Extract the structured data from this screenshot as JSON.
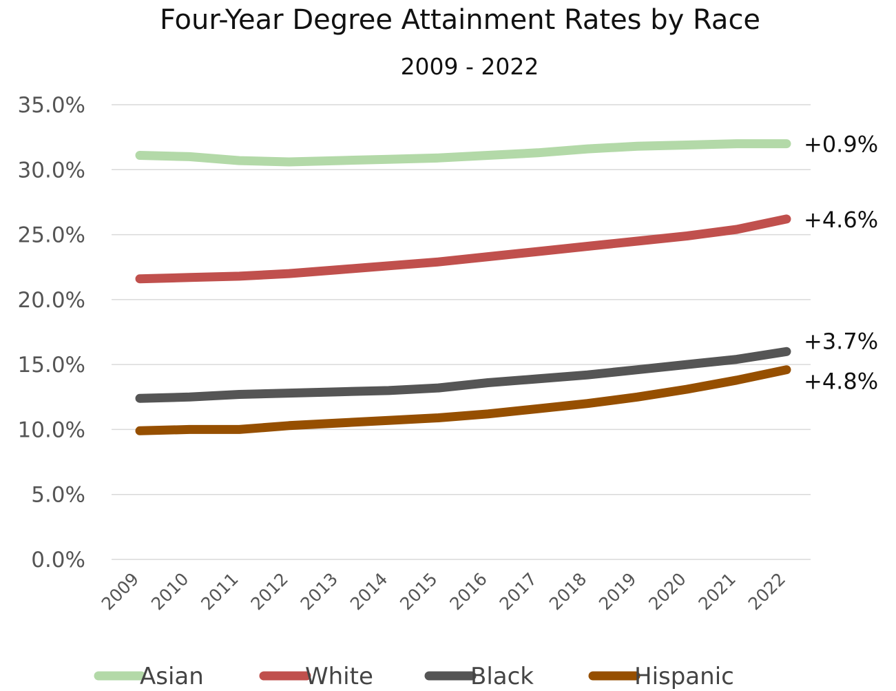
{
  "chart_data": {
    "type": "line",
    "title": "Four-Year Degree Attainment Rates by Race",
    "subtitle": "2009 - 2022",
    "categories": [
      "2009",
      "2010",
      "2011",
      "2012",
      "2013",
      "2014",
      "2015",
      "2016",
      "2017",
      "2018",
      "2019",
      "2020",
      "2021",
      "2022"
    ],
    "ylim": [
      0,
      35
    ],
    "yticks": [
      0,
      5,
      10,
      15,
      20,
      25,
      30,
      35
    ],
    "ytick_labels": [
      "0.0%",
      "5.0%",
      "10.0%",
      "15.0%",
      "20.0%",
      "25.0%",
      "30.0%",
      "35.0%"
    ],
    "grid": true,
    "legend_position": "bottom",
    "series": [
      {
        "name": "Asian",
        "color": "#b3d9a8",
        "annotation": "+0.9%",
        "values": [
          31.1,
          31.0,
          30.7,
          30.6,
          30.7,
          30.8,
          30.9,
          31.1,
          31.3,
          31.6,
          31.8,
          31.9,
          32.0,
          32.0
        ]
      },
      {
        "name": "White",
        "color": "#c0504d",
        "annotation": "+4.6%",
        "values": [
          21.6,
          21.7,
          21.8,
          22.0,
          22.3,
          22.6,
          22.9,
          23.3,
          23.7,
          24.1,
          24.5,
          24.9,
          25.4,
          26.2
        ]
      },
      {
        "name": "Black",
        "color": "#555555",
        "annotation": "+3.7%",
        "values": [
          12.4,
          12.5,
          12.7,
          12.8,
          12.9,
          13.0,
          13.2,
          13.6,
          13.9,
          14.2,
          14.6,
          15.0,
          15.4,
          16.0
        ]
      },
      {
        "name": "Hispanic",
        "color": "#964f00",
        "annotation": "+4.8%",
        "values": [
          9.9,
          10.0,
          10.0,
          10.3,
          10.5,
          10.7,
          10.9,
          11.2,
          11.6,
          12.0,
          12.5,
          13.1,
          13.8,
          14.6
        ]
      }
    ]
  }
}
